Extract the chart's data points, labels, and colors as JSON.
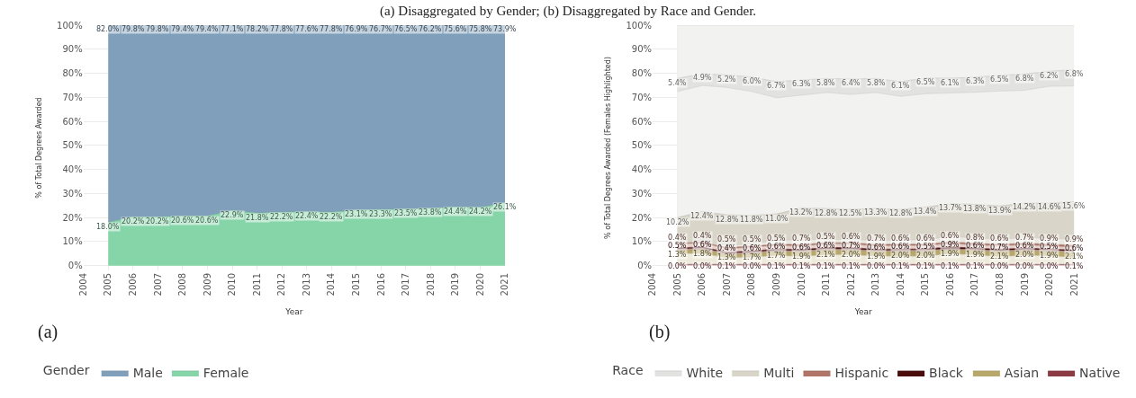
{
  "chart_data": [
    {
      "type": "area",
      "title": "(a) Disaggregated by Gender; (b) Disaggregated by Race and Gender.",
      "xlabel": "Year",
      "ylabel": "% of Total Degrees Awarded",
      "legend_title": "Gender",
      "annotations": [
        "(a)"
      ],
      "stacked": true,
      "grid": true,
      "legend": "bottom",
      "x": [
        2005,
        2006,
        2007,
        2008,
        2009,
        2010,
        2011,
        2012,
        2013,
        2014,
        2015,
        2016,
        2017,
        2018,
        2019,
        2020,
        2021
      ],
      "xlim": [
        2004,
        2021
      ],
      "xticks": [
        2004,
        2005,
        2006,
        2007,
        2008,
        2009,
        2010,
        2011,
        2012,
        2013,
        2014,
        2015,
        2016,
        2017,
        2018,
        2019,
        2020,
        2021
      ],
      "ylim": [
        -2,
        100
      ],
      "yticks": [
        {
          "value": 0,
          "label": "0%"
        },
        {
          "value": 10,
          "label": "10%"
        },
        {
          "value": 20,
          "label": "20%"
        },
        {
          "value": 30,
          "label": "30%"
        },
        {
          "value": 40,
          "label": "40%"
        },
        {
          "value": 50,
          "label": "50%"
        },
        {
          "value": 60,
          "label": "60%"
        },
        {
          "value": 70,
          "label": "70%"
        },
        {
          "value": 80,
          "label": "80%"
        },
        {
          "value": 90,
          "label": "90%"
        },
        {
          "value": 100,
          "label": "100%"
        }
      ],
      "series": [
        {
          "name": "Female",
          "color": "#86d5a9",
          "values": [
            18.0,
            20.2,
            20.2,
            20.6,
            20.6,
            22.9,
            21.8,
            22.2,
            22.4,
            22.2,
            23.1,
            23.3,
            23.5,
            23.8,
            24.4,
            24.2,
            26.1
          ],
          "value_labels": [
            "18.0%",
            "20.2%",
            "20.2%",
            "20.6%",
            "20.6%",
            "22.9%",
            "21.8%",
            "22.2%",
            "22.4%",
            "22.2%",
            "23.1%",
            "23.3%",
            "23.5%",
            "23.8%",
            "24.4%",
            "24.2%",
            "26.1%"
          ]
        },
        {
          "name": "Male",
          "color": "#7f9fba",
          "values": [
            82.0,
            79.8,
            79.8,
            79.4,
            79.4,
            77.1,
            78.2,
            77.8,
            77.6,
            77.8,
            76.9,
            76.7,
            76.5,
            76.2,
            75.6,
            75.8,
            73.9
          ],
          "value_labels": [
            "82.0%",
            "79.8%",
            "79.8%",
            "79.4%",
            "79.4%",
            "77.1%",
            "78.2%",
            "77.8%",
            "77.6%",
            "77.8%",
            "76.9%",
            "76.7%",
            "76.5%",
            "76.2%",
            "75.6%",
            "75.8%",
            "73.9%"
          ]
        }
      ]
    },
    {
      "type": "area",
      "xlabel": "Year",
      "ylabel": "% of Total Degrees Awarded (Females Highlighted)",
      "legend_title": "Race",
      "annotations": [
        "(b)"
      ],
      "stacked": true,
      "grid": true,
      "legend": "bottom",
      "x": [
        2005,
        2006,
        2007,
        2008,
        2009,
        2010,
        2011,
        2012,
        2013,
        2014,
        2015,
        2016,
        2017,
        2018,
        2019,
        2020,
        2021
      ],
      "xlim": [
        2004,
        2021
      ],
      "xticks": [
        2004,
        2005,
        2006,
        2007,
        2008,
        2009,
        2010,
        2011,
        2012,
        2013,
        2014,
        2015,
        2016,
        2017,
        2018,
        2019,
        2020,
        2021
      ],
      "ylim": [
        -2,
        100
      ],
      "yticks": [
        {
          "value": 0,
          "label": "0%"
        },
        {
          "value": 10,
          "label": "10%"
        },
        {
          "value": 20,
          "label": "20%"
        },
        {
          "value": 30,
          "label": "30%"
        },
        {
          "value": 40,
          "label": "40%"
        },
        {
          "value": 50,
          "label": "50%"
        },
        {
          "value": 60,
          "label": "60%"
        },
        {
          "value": 70,
          "label": "70%"
        },
        {
          "value": 80,
          "label": "80%"
        },
        {
          "value": 90,
          "label": "90%"
        },
        {
          "value": 100,
          "label": "100%"
        }
      ],
      "series": [
        {
          "color": "#d8b8bc",
          "values": [
            0.5,
            0.5,
            0.4,
            0.5,
            0.4,
            0.4,
            0.4,
            0.4,
            0.5,
            0.4,
            0.4,
            0.4,
            0.4,
            0.5,
            0.5,
            0.5,
            0.4
          ]
        },
        {
          "name": "Native",
          "color": "#8c3a44",
          "values": [
            0.0,
            0.0,
            0.1,
            0.0,
            0.1,
            0.1,
            0.1,
            0.1,
            0.0,
            0.1,
            0.1,
            0.1,
            0.1,
            0.0,
            0.0,
            0.0,
            0.1
          ],
          "value_labels": [
            "0.0%",
            "0.0%",
            "0.1%",
            "0.0%",
            "0.1%",
            "0.1%",
            "0.1%",
            "0.1%",
            "0.0%",
            "0.1%",
            "0.1%",
            "0.1%",
            "0.1%",
            "0.0%",
            "0.0%",
            "0.0%",
            "0.1%"
          ]
        },
        {
          "color": "#efebdc",
          "values": [
            4.5,
            4.5,
            2.7,
            2.9,
            3.7,
            3.3,
            3.9,
            4.0,
            3.4,
            3.4,
            3.4,
            4.4,
            3.9,
            3.2,
            3.8,
            3.5,
            2.9
          ]
        },
        {
          "name": "Asian",
          "color": "#b8a86a",
          "values": [
            1.3,
            1.8,
            1.3,
            1.7,
            1.7,
            1.9,
            2.1,
            2.0,
            1.9,
            2.0,
            2.0,
            1.9,
            1.9,
            2.1,
            2.0,
            1.9,
            2.1
          ],
          "value_labels": [
            "1.3%",
            "1.8%",
            "1.3%",
            "1.7%",
            "1.7%",
            "1.9%",
            "2.1%",
            "2.0%",
            "1.9%",
            "2.0%",
            "2.0%",
            "1.9%",
            "1.9%",
            "2.1%",
            "2.0%",
            "1.9%",
            "2.1%"
          ]
        },
        {
          "color": "#c9a6a6",
          "values": [
            0.5,
            0.4,
            0.6,
            0.4,
            0.4,
            0.4,
            0.4,
            0.3,
            0.4,
            0.4,
            0.5,
            0.1,
            0.4,
            0.3,
            0.4,
            0.5,
            0.4
          ]
        },
        {
          "name": "Black",
          "color": "#4a0c0c",
          "values": [
            0.5,
            0.6,
            0.4,
            0.6,
            0.6,
            0.6,
            0.6,
            0.7,
            0.6,
            0.6,
            0.5,
            0.9,
            0.6,
            0.7,
            0.6,
            0.5,
            0.6
          ],
          "value_labels": [
            "0.5%",
            "0.6%",
            "0.4%",
            "0.6%",
            "0.6%",
            "0.6%",
            "0.6%",
            "0.7%",
            "0.6%",
            "0.6%",
            "0.5%",
            "0.9%",
            "0.6%",
            "0.7%",
            "0.6%",
            "0.5%",
            "0.6%"
          ]
        },
        {
          "color": "#e8d3cc",
          "values": [
            1.6,
            1.6,
            1.5,
            1.5,
            1.5,
            1.3,
            1.5,
            1.4,
            1.3,
            1.4,
            1.4,
            1.4,
            1.2,
            1.4,
            1.3,
            1.1,
            1.1
          ]
        },
        {
          "name": "Hispanic",
          "color": "#b07566",
          "values": [
            0.4,
            0.4,
            0.5,
            0.5,
            0.5,
            0.7,
            0.5,
            0.6,
            0.7,
            0.6,
            0.6,
            0.6,
            0.8,
            0.6,
            0.7,
            0.9,
            0.9
          ],
          "value_labels": [
            "0.4%",
            "0.4%",
            "0.5%",
            "0.5%",
            "0.5%",
            "0.7%",
            "0.5%",
            "0.6%",
            "0.7%",
            "0.6%",
            "0.6%",
            "0.6%",
            "0.8%",
            "0.6%",
            "0.7%",
            "0.9%",
            "0.9%"
          ]
        },
        {
          "color": "#ebe9e2",
          "values": [
            0.5,
            0.3,
            0.8,
            1.0,
            1.6,
            2.1,
            1.4,
            1.4,
            1.7,
            1.7,
            2.0,
            2.2,
            2.4,
            2.1,
            2.5,
            2.5,
            2.5
          ]
        },
        {
          "name": "Multi",
          "color": "#d9d5c8",
          "values": [
            10.2,
            12.4,
            12.8,
            11.8,
            11.0,
            13.2,
            12.8,
            12.5,
            13.3,
            12.8,
            13.4,
            13.7,
            13.8,
            13.9,
            14.2,
            14.6,
            15.6
          ],
          "value_labels": [
            "10.2%",
            "12.4%",
            "12.8%",
            "11.8%",
            "11.0%",
            "13.2%",
            "12.8%",
            "12.5%",
            "13.3%",
            "12.8%",
            "13.4%",
            "13.7%",
            "13.8%",
            "13.9%",
            "14.2%",
            "14.6%",
            "15.6%"
          ]
        },
        {
          "color": "#f2f2f1",
          "values": [
            52.4,
            52.4,
            53.0,
            51.5,
            48.3,
            46.9,
            48.3,
            47.8,
            48.2,
            47.0,
            47.2,
            46.1,
            46.6,
            47.8,
            46.9,
            48.6,
            48.1
          ]
        },
        {
          "name": "White",
          "color": "#e2e2e0",
          "values": [
            5.4,
            4.9,
            5.2,
            6.0,
            6.7,
            6.3,
            5.8,
            6.4,
            5.8,
            6.1,
            6.5,
            6.1,
            6.3,
            6.5,
            6.8,
            6.2,
            6.8
          ],
          "value_labels": [
            "5.4%",
            "4.9%",
            "5.2%",
            "6.0%",
            "6.7%",
            "6.3%",
            "5.8%",
            "6.4%",
            "5.8%",
            "6.1%",
            "6.5%",
            "6.1%",
            "6.3%",
            "6.5%",
            "6.8%",
            "6.2%",
            "6.8%"
          ]
        },
        {
          "color": "#f2f2f1",
          "values": [
            22.2,
            20.2,
            20.7,
            21.6,
            23.5,
            22.8,
            22.2,
            22.4,
            22.2,
            23.5,
            22.0,
            22.1,
            21.6,
            20.9,
            20.3,
            19.2,
            18.5
          ]
        }
      ]
    }
  ]
}
